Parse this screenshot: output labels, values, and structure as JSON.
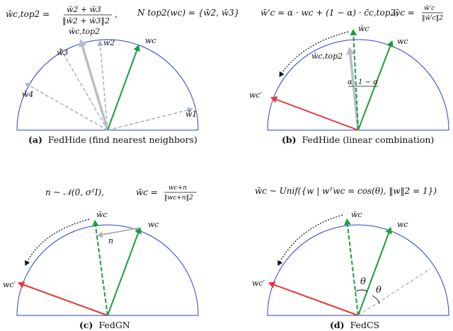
{
  "colors": {
    "arc": "#2b3fd6",
    "neighbor": "#a8b4c8",
    "wc": "#1a9e3a",
    "wc_prime": "#e53935",
    "combo": "#b6bec8",
    "noise": "#b4b4b4",
    "text": "#111111",
    "curve": "#111111"
  },
  "panels": {
    "a": {
      "caption_letter": "(a)",
      "caption_text": "FedHide (find nearest neighbors)",
      "formula_lhs": "w̄c,top2 =",
      "formula_num": "w̄2 + w̄3",
      "formula_den": "‖w̄2 + w̄3‖2",
      "formula_sep": ",",
      "formula_right": "N top2(wc) = {w̄2, w̄3}",
      "labels": {
        "wc": "wc",
        "wtop2": "w̄c,top2",
        "w1": "w̄1",
        "w2": "w̄2",
        "w3": "w̄3",
        "w4": "w̄4"
      }
    },
    "b": {
      "caption_letter": "(b)",
      "caption_text": "FedHide (linear combination)",
      "formula_left": "w̄'c = α · wc + (1 − α) · c̄c,top2,",
      "formula_mid": "w̄c =",
      "formula_num": "w̄'c",
      "formula_den": "‖w̄'c‖2",
      "labels": {
        "wc": "wc",
        "wbar": "w̄c",
        "wtop2": "w̄c,top2",
        "wcp": "wc′",
        "alpha": "α",
        "one_minus_alpha": "1 − α"
      }
    },
    "c": {
      "caption_letter": "(c)",
      "caption_text": "FedGN",
      "formula_left": "n ~ 𝒩(0, σ²I),",
      "formula_mid": "w̄c =",
      "formula_num": "wc+n",
      "formula_den": "‖wc+n‖2",
      "labels": {
        "wc": "wc",
        "wbar": "w̄c",
        "n": "n",
        "wcp": "wc′"
      }
    },
    "d": {
      "caption_letter": "(d)",
      "caption_text": "FedCS",
      "formula": "w̄c ~ Unif({w | wᵀwc = cos(θ), ‖w‖2 = 1})",
      "labels": {
        "wc": "wc",
        "wbar": "w̄c",
        "theta1": "θ",
        "theta2": "θ",
        "wcp": "wc′"
      }
    }
  }
}
